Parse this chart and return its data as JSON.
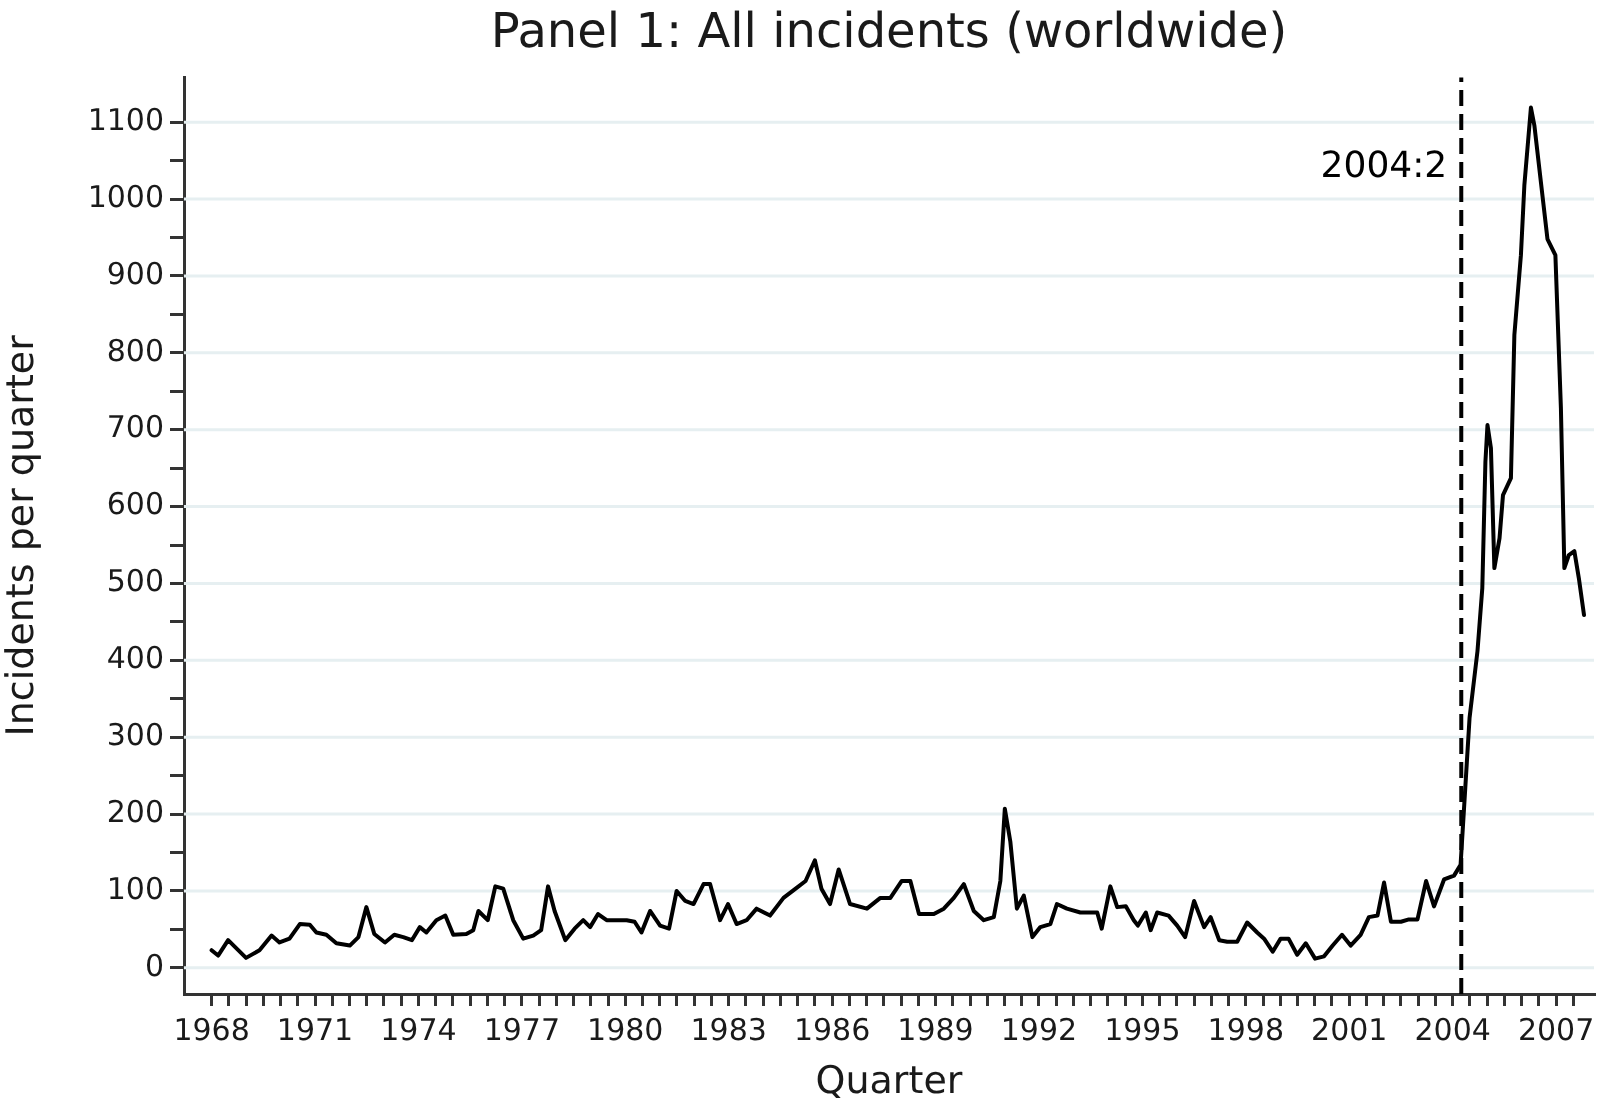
{
  "chart_data": {
    "type": "line",
    "title": "Panel 1: All incidents (worldwide)",
    "xlabel": "Quarter",
    "ylabel": "Incidents per quarter",
    "x": [
      1968.0,
      1968.19,
      1968.48,
      1969.0,
      1969.39,
      1969.74,
      1969.97,
      1970.26,
      1970.56,
      1970.85,
      1971.04,
      1971.33,
      1971.62,
      1972.01,
      1972.26,
      1972.49,
      1972.72,
      1973.03,
      1973.3,
      1973.56,
      1973.81,
      1974.04,
      1974.23,
      1974.52,
      1974.78,
      1975.01,
      1975.39,
      1975.59,
      1975.74,
      1976.01,
      1976.23,
      1976.46,
      1976.75,
      1977.04,
      1977.33,
      1977.56,
      1977.76,
      1977.95,
      1978.26,
      1978.53,
      1978.78,
      1978.98,
      1979.21,
      1979.46,
      1980.04,
      1980.27,
      1980.47,
      1980.72,
      1981.01,
      1981.27,
      1981.49,
      1981.74,
      1981.98,
      1982.27,
      1982.46,
      1982.75,
      1982.98,
      1983.23,
      1983.52,
      1983.81,
      1984.2,
      1984.59,
      1984.97,
      1985.23,
      1985.5,
      1985.69,
      1985.94,
      1986.19,
      1986.52,
      1987.01,
      1987.4,
      1987.69,
      1988.02,
      1988.27,
      1988.52,
      1988.95,
      1989.24,
      1989.53,
      1989.82,
      1990.11,
      1990.4,
      1990.69,
      1990.88,
      1991.01,
      1991.17,
      1991.36,
      1991.56,
      1991.81,
      1992.04,
      1992.33,
      1992.52,
      1992.81,
      1993.2,
      1993.69,
      1993.82,
      1994.07,
      1994.27,
      1994.52,
      1994.75,
      1994.87,
      1995.1,
      1995.24,
      1995.43,
      1995.76,
      1996.01,
      1996.24,
      1996.5,
      1996.79,
      1996.98,
      1997.23,
      1997.46,
      1997.75,
      1998.04,
      1998.33,
      1998.53,
      1998.78,
      1999.01,
      1999.24,
      1999.49,
      1999.74,
      2000.01,
      2000.27,
      2000.52,
      2000.79,
      2001.04,
      2001.33,
      2001.57,
      2001.82,
      2002.01,
      2002.21,
      2002.5,
      2002.73,
      2002.98,
      2003.23,
      2003.46,
      2003.75,
      2004.04,
      2004.23,
      2004.49,
      2004.72,
      2004.86,
      2004.95,
      2005.01,
      2005.11,
      2005.21,
      2005.36,
      2005.46,
      2005.69,
      2005.79,
      2005.98,
      2006.08,
      2006.27,
      2006.37,
      2006.56,
      2006.75,
      2006.98,
      2007.14,
      2007.24,
      2007.37,
      2007.53,
      2007.66,
      2007.81
    ],
    "values": [
      23,
      16,
      36,
      13,
      23,
      42,
      33,
      38,
      57,
      56,
      46,
      43,
      32,
      29,
      40,
      79,
      44,
      33,
      43,
      40,
      36,
      53,
      46,
      62,
      68,
      43,
      44,
      49,
      74,
      62,
      106,
      103,
      62,
      38,
      42,
      49,
      106,
      74,
      36,
      51,
      62,
      53,
      70,
      62,
      62,
      60,
      46,
      74,
      55,
      51,
      100,
      87,
      83,
      109,
      109,
      62,
      83,
      57,
      62,
      77,
      68,
      91,
      104,
      113,
      140,
      103,
      83,
      128,
      83,
      77,
      91,
      91,
      113,
      113,
      70,
      70,
      77,
      91,
      109,
      74,
      62,
      66,
      113,
      207,
      164,
      77,
      94,
      40,
      53,
      57,
      83,
      77,
      72,
      72,
      51,
      106,
      79,
      80,
      62,
      55,
      72,
      49,
      72,
      68,
      55,
      40,
      87,
      53,
      66,
      36,
      34,
      34,
      59,
      46,
      38,
      21,
      38,
      38,
      17,
      32,
      12,
      15,
      29,
      43,
      29,
      43,
      66,
      68,
      111,
      60,
      60,
      63,
      63,
      113,
      80,
      115,
      120,
      134,
      325,
      412,
      494,
      658,
      706,
      676,
      520,
      559,
      615,
      637,
      823,
      927,
      1018,
      1119,
      1096,
      1022,
      948,
      927,
      728,
      520,
      537,
      542,
      507,
      459
    ],
    "color": "#000000",
    "marker": "none",
    "line_style": "solid",
    "xlim": [
      1967.2,
      2008.1
    ],
    "ylim": [
      -34,
      1158
    ],
    "xticks": [
      1968,
      {
        "value": 1968.5,
        "label": null
      },
      {
        "value": 1969,
        "label": null
      },
      {
        "value": 1969.5,
        "label": null
      },
      {
        "value": 1970,
        "label": null
      },
      {
        "value": 1970.5,
        "label": null
      },
      1971,
      {
        "value": 1971.5,
        "label": null
      },
      {
        "value": 1972,
        "label": null
      },
      {
        "value": 1972.5,
        "label": null
      },
      {
        "value": 1973,
        "label": null
      },
      {
        "value": 1973.5,
        "label": null
      },
      1974,
      {
        "value": 1974.5,
        "label": null
      },
      {
        "value": 1975,
        "label": null
      },
      {
        "value": 1975.5,
        "label": null
      },
      {
        "value": 1976,
        "label": null
      },
      {
        "value": 1976.5,
        "label": null
      },
      1977,
      {
        "value": 1977.5,
        "label": null
      },
      {
        "value": 1978,
        "label": null
      },
      {
        "value": 1978.5,
        "label": null
      },
      {
        "value": 1979,
        "label": null
      },
      {
        "value": 1979.5,
        "label": null
      },
      1980,
      {
        "value": 1980.5,
        "label": null
      },
      {
        "value": 1981,
        "label": null
      },
      {
        "value": 1981.5,
        "label": null
      },
      {
        "value": 1982,
        "label": null
      },
      {
        "value": 1982.5,
        "label": null
      },
      1983,
      {
        "value": 1983.5,
        "label": null
      },
      {
        "value": 1984,
        "label": null
      },
      {
        "value": 1984.5,
        "label": null
      },
      {
        "value": 1985,
        "label": null
      },
      {
        "value": 1985.5,
        "label": null
      },
      1986,
      {
        "value": 1986.5,
        "label": null
      },
      {
        "value": 1987,
        "label": null
      },
      {
        "value": 1987.5,
        "label": null
      },
      {
        "value": 1988,
        "label": null
      },
      {
        "value": 1988.5,
        "label": null
      },
      1989,
      {
        "value": 1989.5,
        "label": null
      },
      {
        "value": 1990,
        "label": null
      },
      {
        "value": 1990.5,
        "label": null
      },
      {
        "value": 1991,
        "label": null
      },
      {
        "value": 1991.5,
        "label": null
      },
      1992,
      {
        "value": 1992.5,
        "label": null
      },
      {
        "value": 1993,
        "label": null
      },
      {
        "value": 1993.5,
        "label": null
      },
      {
        "value": 1994,
        "label": null
      },
      {
        "value": 1994.5,
        "label": null
      },
      1995,
      {
        "value": 1995.5,
        "label": null
      },
      {
        "value": 1996,
        "label": null
      },
      {
        "value": 1996.5,
        "label": null
      },
      {
        "value": 1997,
        "label": null
      },
      {
        "value": 1997.5,
        "label": null
      },
      1998,
      {
        "value": 1998.5,
        "label": null
      },
      {
        "value": 1999,
        "label": null
      },
      {
        "value": 1999.5,
        "label": null
      },
      {
        "value": 2000,
        "label": null
      },
      {
        "value": 2000.5,
        "label": null
      },
      2001,
      {
        "value": 2001.5,
        "label": null
      },
      {
        "value": 2002,
        "label": null
      },
      {
        "value": 2002.5,
        "label": null
      },
      {
        "value": 2003,
        "label": null
      },
      {
        "value": 2003.5,
        "label": null
      },
      2004,
      {
        "value": 2004.5,
        "label": null
      },
      {
        "value": 2005,
        "label": null
      },
      {
        "value": 2005.5,
        "label": null
      },
      {
        "value": 2006,
        "label": null
      },
      {
        "value": 2006.5,
        "label": null
      },
      2007,
      {
        "value": 2007.5,
        "label": null
      }
    ],
    "yticks": [
      0,
      {
        "value": 50,
        "label": null
      },
      100,
      {
        "value": 150,
        "label": null
      },
      200,
      {
        "value": 250,
        "label": null
      },
      300,
      {
        "value": 350,
        "label": null
      },
      400,
      {
        "value": 450,
        "label": null
      },
      500,
      {
        "value": 550,
        "label": null
      },
      600,
      {
        "value": 650,
        "label": null
      },
      700,
      {
        "value": 750,
        "label": null
      },
      800,
      {
        "value": 850,
        "label": null
      },
      900,
      {
        "value": 950,
        "label": null
      },
      1000,
      {
        "value": 1050,
        "label": null
      },
      1100
    ],
    "grid": "y",
    "ref_lines": [
      {
        "axis": "x",
        "value": 2004.25,
        "label": "2004:2",
        "color": "#000000",
        "line_style": "dashed"
      }
    ]
  }
}
